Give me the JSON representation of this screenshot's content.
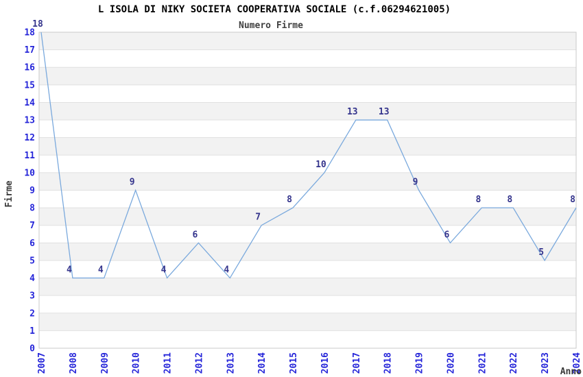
{
  "chart_data": {
    "type": "line",
    "title": "L ISOLA DI NIKY SOCIETA COOPERATIVA SOCIALE (c.f.06294621005)",
    "subtitle": "Numero Firme",
    "xlabel": "Anno",
    "ylabel": "Firme",
    "categories": [
      "2007",
      "2008",
      "2009",
      "2010",
      "2011",
      "2012",
      "2013",
      "2014",
      "2015",
      "2016",
      "2017",
      "2018",
      "2019",
      "2020",
      "2021",
      "2022",
      "2023",
      "2024"
    ],
    "values": [
      18,
      4,
      4,
      9,
      4,
      6,
      4,
      7,
      8,
      10,
      13,
      13,
      9,
      6,
      8,
      8,
      5,
      8
    ],
    "ylim": [
      0,
      18
    ],
    "y_tick_step": 1,
    "grid": "horizontal alternating bands, gridline every unit",
    "legend": "none",
    "point_labels_shown": true,
    "x_tick_rotation_degrees": 90
  },
  "colors": {
    "line": "#7aa9dd",
    "tick_label": "#2525d9",
    "point_label": "#34348c",
    "band": "#f2f2f2",
    "gridline": "#e0e0e0",
    "plot_border": "#c9c9c9",
    "title_text": "#000000",
    "subtitle_text": "#404040",
    "background": "#ffffff"
  }
}
